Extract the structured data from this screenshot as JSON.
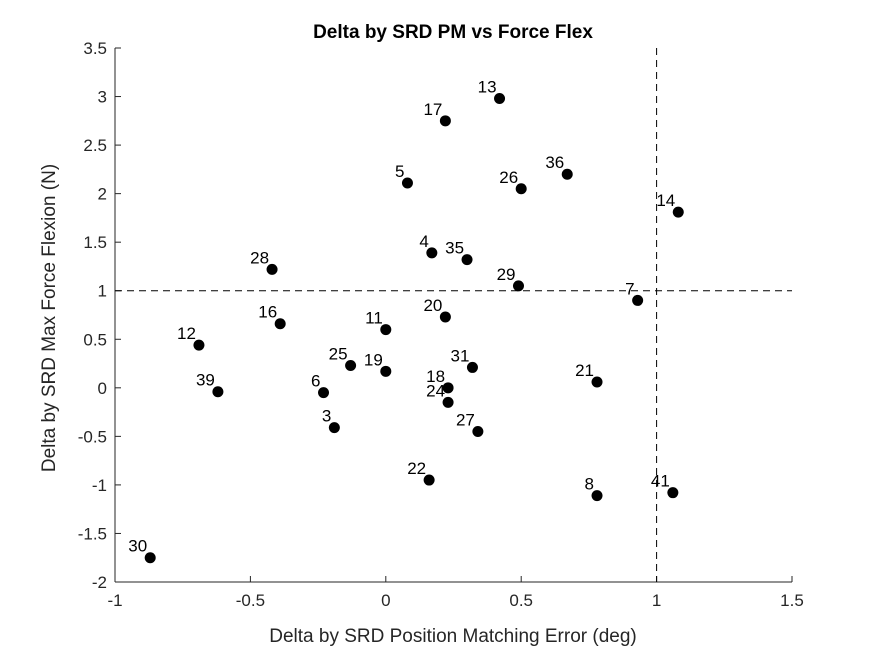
{
  "chart_data": {
    "type": "scatter",
    "title": "Delta by SRD PM vs Force Flex",
    "xlabel": "Delta by SRD Position Matching Error (deg)",
    "ylabel": "Delta by SRD Max Force Flexion (N)",
    "xlim": [
      -1,
      1.5
    ],
    "ylim": [
      -2,
      3.5
    ],
    "xticks": [
      -1,
      -0.5,
      0,
      0.5,
      1,
      1.5
    ],
    "xtick_labels": [
      "-1",
      "-0.5",
      "0",
      "0.5",
      "1",
      "1.5"
    ],
    "yticks": [
      -2,
      -1.5,
      -1,
      -0.5,
      0,
      0.5,
      1,
      1.5,
      2,
      2.5,
      3,
      3.5
    ],
    "ytick_labels": [
      "-2",
      "-1.5",
      "-1",
      "-0.5",
      "0",
      "0.5",
      "1",
      "1.5",
      "2",
      "2.5",
      "3",
      "3.5"
    ],
    "reference_lines": {
      "x": 1,
      "y": 1,
      "style": "dashed"
    },
    "grid": false,
    "marker_color": "#000000",
    "points": [
      {
        "label": "13",
        "x": 0.42,
        "y": 2.98
      },
      {
        "label": "17",
        "x": 0.22,
        "y": 2.75
      },
      {
        "label": "5",
        "x": 0.08,
        "y": 2.11
      },
      {
        "label": "26",
        "x": 0.5,
        "y": 2.05
      },
      {
        "label": "36",
        "x": 0.67,
        "y": 2.2
      },
      {
        "label": "14",
        "x": 1.08,
        "y": 1.81
      },
      {
        "label": "4",
        "x": 0.17,
        "y": 1.39
      },
      {
        "label": "35",
        "x": 0.3,
        "y": 1.32
      },
      {
        "label": "28",
        "x": -0.42,
        "y": 1.22
      },
      {
        "label": "29",
        "x": 0.49,
        "y": 1.05
      },
      {
        "label": "7",
        "x": 0.93,
        "y": 0.9
      },
      {
        "label": "20",
        "x": 0.22,
        "y": 0.73
      },
      {
        "label": "16",
        "x": -0.39,
        "y": 0.66
      },
      {
        "label": "11",
        "x": 0.0,
        "y": 0.6
      },
      {
        "label": "12",
        "x": -0.69,
        "y": 0.44
      },
      {
        "label": "25",
        "x": -0.13,
        "y": 0.23
      },
      {
        "label": "19",
        "x": 0.0,
        "y": 0.17
      },
      {
        "label": "31",
        "x": 0.32,
        "y": 0.21
      },
      {
        "label": "21",
        "x": 0.78,
        "y": 0.06
      },
      {
        "label": "18",
        "x": 0.23,
        "y": 0.0
      },
      {
        "label": "39",
        "x": -0.62,
        "y": -0.04
      },
      {
        "label": "6",
        "x": -0.23,
        "y": -0.05
      },
      {
        "label": "24",
        "x": 0.23,
        "y": -0.15
      },
      {
        "label": "3",
        "x": -0.19,
        "y": -0.41
      },
      {
        "label": "27",
        "x": 0.34,
        "y": -0.45
      },
      {
        "label": "22",
        "x": 0.16,
        "y": -0.95
      },
      {
        "label": "8",
        "x": 0.78,
        "y": -1.11
      },
      {
        "label": "41",
        "x": 1.06,
        "y": -1.08
      },
      {
        "label": "30",
        "x": -0.87,
        "y": -1.75
      }
    ]
  }
}
